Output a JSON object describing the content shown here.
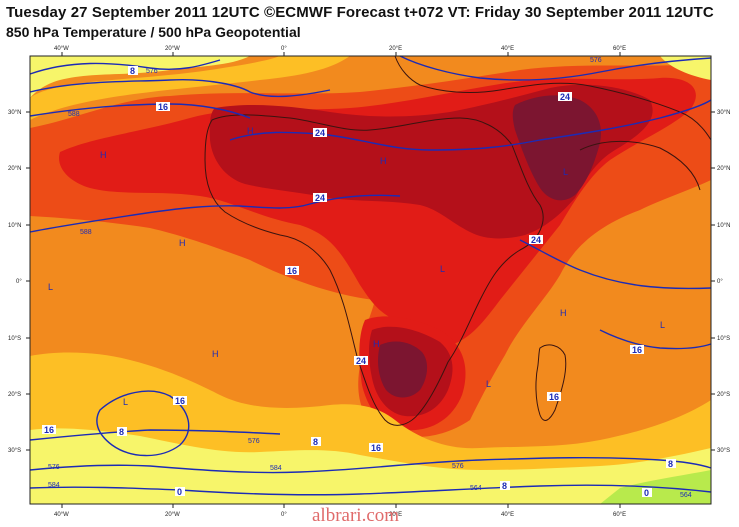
{
  "header": {
    "title_line1": "Tuesday 27 September 2011 12UTC ©ECMWF Forecast t+072 VT: Friday 30 September 2011 12UTC",
    "title_line2": "850 hPa Temperature / 500 hPa Geopotential"
  },
  "axes": {
    "lon_labels": [
      "40°W",
      "20°W",
      "0°",
      "20°E",
      "40°E",
      "60°E"
    ],
    "lat_labels": [
      "30°N",
      "20°N",
      "10°N",
      "0°",
      "10°S",
      "20°S",
      "30°S"
    ]
  },
  "isotherm_labels": [
    "0",
    "8",
    "16",
    "24"
  ],
  "geopotential_labels": [
    "576",
    "584",
    "588",
    "564"
  ],
  "pressure_markers": [
    "H",
    "L"
  ],
  "watermark": "albrari.com",
  "colors": {
    "temp_0_8": "#f7f56a",
    "temp_8_16": "#fdbf25",
    "temp_16_20": "#f28a1e",
    "temp_20_24": "#ed4c17",
    "temp_24_28": "#e11c17",
    "temp_28_32": "#b4101a",
    "temp_32_plus": "#7c1530",
    "cold_green": "#b8ea4c",
    "geopotential": "#1c2bb6",
    "coastline": "#3a1410"
  }
}
